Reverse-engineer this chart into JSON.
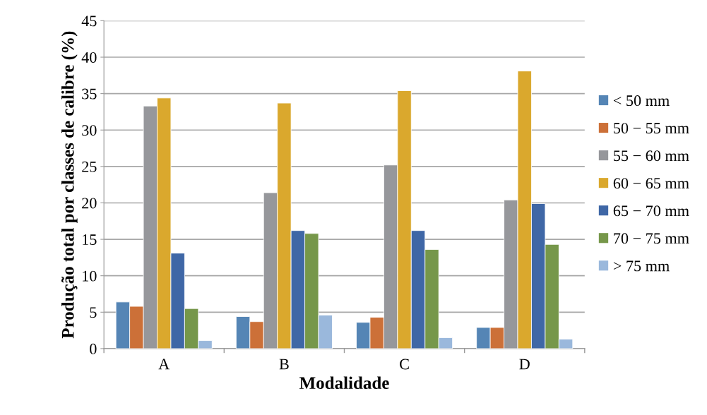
{
  "chart_data": {
    "type": "bar",
    "xlabel": "Modalidade",
    "ylabel": "Produção total por classes de calibre (%)",
    "categories": [
      "A",
      "B",
      "C",
      "D"
    ],
    "series": [
      {
        "name": "< 50 mm",
        "color": "#5585b5",
        "values": [
          6.4,
          4.4,
          3.6,
          2.9
        ]
      },
      {
        "name": "50 − 55 mm",
        "color": "#cc7038",
        "values": [
          5.8,
          3.7,
          4.3,
          2.9
        ]
      },
      {
        "name": "55 − 60 mm",
        "color": "#96979b",
        "values": [
          33.3,
          21.4,
          25.2,
          20.4
        ]
      },
      {
        "name": "60 − 65 mm",
        "color": "#daa82d",
        "values": [
          34.4,
          33.7,
          35.4,
          38.1
        ]
      },
      {
        "name": "65 − 70 mm",
        "color": "#3f67a6",
        "values": [
          13.1,
          16.2,
          16.2,
          19.9
        ]
      },
      {
        "name": "70 − 75 mm",
        "color": "#76974a",
        "values": [
          5.5,
          15.8,
          13.6,
          14.3
        ]
      },
      {
        "name": "> 75 mm",
        "color": "#9ab8dc",
        "values": [
          1.1,
          4.6,
          1.5,
          1.3
        ]
      }
    ],
    "ylim": [
      0,
      45
    ],
    "yticks": [
      0,
      5,
      10,
      15,
      20,
      25,
      30,
      35,
      40,
      45
    ],
    "grid": "y",
    "legend": "right"
  }
}
